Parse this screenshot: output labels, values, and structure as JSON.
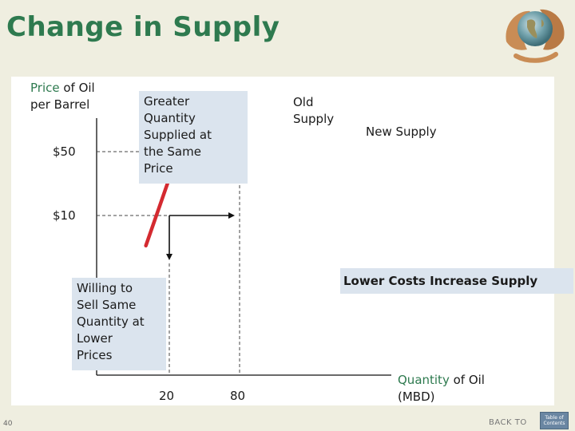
{
  "slide": {
    "title": "Change in Supply",
    "page_number": "40",
    "back_to": "BACK TO",
    "toc": "Table of Contents"
  },
  "chart_data": {
    "type": "line",
    "ylabel": {
      "colored": "Price",
      "rest": " of Oil",
      "line2": "per Barrel"
    },
    "xlabel": {
      "colored": "Quantity",
      "rest": " of Oil",
      "line2": "(MBD)"
    },
    "ytick_labels": [
      "$50",
      "$10"
    ],
    "xtick_labels": [
      "20",
      "80"
    ],
    "series": [
      {
        "name": "Old Supply",
        "color": "#d42a30",
        "points": [
          [
            0,
            -8.9
          ],
          [
            36,
            67.1
          ]
        ]
      },
      {
        "name": "New Supply"
      }
    ],
    "reference_points": [
      {
        "x": 20,
        "y": 10
      },
      {
        "x": 80,
        "y": 10
      },
      {
        "x": 80,
        "y": 50
      }
    ],
    "annotations": {
      "old_supply": [
        "Old",
        "Supply"
      ],
      "new_supply": "New Supply",
      "greater_quantity": [
        "Greater",
        "Quantity",
        "Supplied at",
        "the Same",
        "Price"
      ],
      "willing_to_sell": [
        "Willing to",
        "Sell Same",
        "Quantity at",
        "Lower",
        "Prices"
      ],
      "lower_costs": "Lower Costs Increase Supply"
    },
    "colors": {
      "title": "#2e7a4f",
      "callout": "#dbe4ee",
      "supply_line": "#d42a30"
    }
  }
}
